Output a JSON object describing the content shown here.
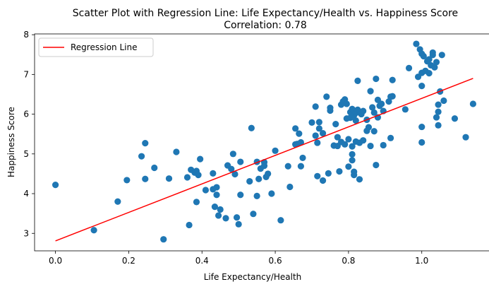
{
  "chart_data": {
    "type": "scatter",
    "title": "Scatter Plot with Regression Line: Life Expectancy/Health vs. Happiness Score",
    "subtitle": "Correlation: 0.78",
    "xlabel": "Life Expectancy/Health",
    "ylabel": "Happiness Score",
    "xlim": [
      -0.057,
      1.197
    ],
    "ylim": [
      2.56,
      8.02
    ],
    "xticks": [
      0.0,
      0.2,
      0.4,
      0.6,
      0.8,
      1.0
    ],
    "xtick_labels": [
      "0.0",
      "0.2",
      "0.4",
      "0.6",
      "0.8",
      "1.0"
    ],
    "yticks": [
      3,
      4,
      5,
      6,
      7,
      8
    ],
    "ytick_labels": [
      "3",
      "4",
      "5",
      "6",
      "7",
      "8"
    ],
    "grid": false,
    "legend": {
      "placement": "top-left",
      "entries": [
        "Regression Line"
      ]
    },
    "colors": {
      "points": "#1f77b4",
      "regression": "#ff0000"
    },
    "regression": {
      "name": "Regression Line",
      "x": [
        0.0,
        1.14
      ],
      "y": [
        2.81,
        6.9
      ]
    },
    "points": [
      [
        0.0,
        4.22
      ],
      [
        0.105,
        3.08
      ],
      [
        0.17,
        3.8
      ],
      [
        0.195,
        4.34
      ],
      [
        0.235,
        4.94
      ],
      [
        0.245,
        5.27
      ],
      [
        0.245,
        4.37
      ],
      [
        0.27,
        4.65
      ],
      [
        0.295,
        2.85
      ],
      [
        0.31,
        4.38
      ],
      [
        0.33,
        5.05
      ],
      [
        0.36,
        4.41
      ],
      [
        0.365,
        3.21
      ],
      [
        0.37,
        4.6
      ],
      [
        0.38,
        4.53
      ],
      [
        0.385,
        3.79
      ],
      [
        0.385,
        4.57
      ],
      [
        0.39,
        4.47
      ],
      [
        0.395,
        4.87
      ],
      [
        0.41,
        4.09
      ],
      [
        0.43,
        4.51
      ],
      [
        0.43,
        4.11
      ],
      [
        0.435,
        3.67
      ],
      [
        0.44,
        4.16
      ],
      [
        0.44,
        3.97
      ],
      [
        0.445,
        3.45
      ],
      [
        0.45,
        3.6
      ],
      [
        0.465,
        3.38
      ],
      [
        0.47,
        4.71
      ],
      [
        0.48,
        4.62
      ],
      [
        0.485,
        5.0
      ],
      [
        0.49,
        4.49
      ],
      [
        0.495,
        3.4
      ],
      [
        0.5,
        3.23
      ],
      [
        0.505,
        3.97
      ],
      [
        0.505,
        4.8
      ],
      [
        0.53,
        4.31
      ],
      [
        0.535,
        5.65
      ],
      [
        0.54,
        3.49
      ],
      [
        0.55,
        4.8
      ],
      [
        0.55,
        3.94
      ],
      [
        0.555,
        4.37
      ],
      [
        0.56,
        4.63
      ],
      [
        0.57,
        4.79
      ],
      [
        0.57,
        4.7
      ],
      [
        0.575,
        4.42
      ],
      [
        0.58,
        4.5
      ],
      [
        0.59,
        4.0
      ],
      [
        0.6,
        5.08
      ],
      [
        0.615,
        3.33
      ],
      [
        0.635,
        4.69
      ],
      [
        0.64,
        4.17
      ],
      [
        0.655,
        5.24
      ],
      [
        0.655,
        5.64
      ],
      [
        0.66,
        5.25
      ],
      [
        0.665,
        5.51
      ],
      [
        0.67,
        4.69
      ],
      [
        0.67,
        5.29
      ],
      [
        0.675,
        4.9
      ],
      [
        0.7,
        5.79
      ],
      [
        0.71,
        5.46
      ],
      [
        0.71,
        6.19
      ],
      [
        0.715,
        4.44
      ],
      [
        0.715,
        5.28
      ],
      [
        0.72,
        5.64
      ],
      [
        0.72,
        5.8
      ],
      [
        0.73,
        4.33
      ],
      [
        0.73,
        5.52
      ],
      [
        0.74,
        6.44
      ],
      [
        0.745,
        4.51
      ],
      [
        0.75,
        6.16
      ],
      [
        0.75,
        6.09
      ],
      [
        0.76,
        5.21
      ],
      [
        0.765,
        5.75
      ],
      [
        0.77,
        5.2
      ],
      [
        0.77,
        5.42
      ],
      [
        0.775,
        4.56
      ],
      [
        0.78,
        5.3
      ],
      [
        0.78,
        6.24
      ],
      [
        0.785,
        6.32
      ],
      [
        0.79,
        6.37
      ],
      [
        0.79,
        5.24
      ],
      [
        0.795,
        5.89
      ],
      [
        0.795,
        6.26
      ],
      [
        0.8,
        4.68
      ],
      [
        0.8,
        5.37
      ],
      [
        0.805,
        5.91
      ],
      [
        0.805,
        6.05
      ],
      [
        0.81,
        5.19
      ],
      [
        0.81,
        6.13
      ],
      [
        0.81,
        4.99
      ],
      [
        0.81,
        4.84
      ],
      [
        0.815,
        4.55
      ],
      [
        0.815,
        4.47
      ],
      [
        0.815,
        5.97
      ],
      [
        0.82,
        6.03
      ],
      [
        0.82,
        5.84
      ],
      [
        0.82,
        5.31
      ],
      [
        0.825,
        6.11
      ],
      [
        0.825,
        6.84
      ],
      [
        0.83,
        4.36
      ],
      [
        0.83,
        5.28
      ],
      [
        0.835,
        6.0
      ],
      [
        0.84,
        6.08
      ],
      [
        0.84,
        5.34
      ],
      [
        0.85,
        5.86
      ],
      [
        0.85,
        5.58
      ],
      [
        0.855,
        5.67
      ],
      [
        0.86,
        5.2
      ],
      [
        0.86,
        6.58
      ],
      [
        0.865,
        6.17
      ],
      [
        0.87,
        6.04
      ],
      [
        0.87,
        5.57
      ],
      [
        0.875,
        6.89
      ],
      [
        0.875,
        4.72
      ],
      [
        0.88,
        5.92
      ],
      [
        0.88,
        6.36
      ],
      [
        0.885,
        6.21
      ],
      [
        0.89,
        6.26
      ],
      [
        0.895,
        6.08
      ],
      [
        0.895,
        5.22
      ],
      [
        0.91,
        6.32
      ],
      [
        0.915,
        5.4
      ],
      [
        0.915,
        6.44
      ],
      [
        0.92,
        6.86
      ],
      [
        0.92,
        6.45
      ],
      [
        0.955,
        6.12
      ],
      [
        0.965,
        7.16
      ],
      [
        0.985,
        7.77
      ],
      [
        0.99,
        6.94
      ],
      [
        0.995,
        7.63
      ],
      [
        1.0,
        7.04
      ],
      [
        1.0,
        7.52
      ],
      [
        1.0,
        6.71
      ],
      [
        1.0,
        5.68
      ],
      [
        1.0,
        5.29
      ],
      [
        1.005,
        7.46
      ],
      [
        1.01,
        7.09
      ],
      [
        1.015,
        7.33
      ],
      [
        1.02,
        7.38
      ],
      [
        1.02,
        7.03
      ],
      [
        1.025,
        7.23
      ],
      [
        1.03,
        7.55
      ],
      [
        1.03,
        7.49
      ],
      [
        1.035,
        7.18
      ],
      [
        1.04,
        5.92
      ],
      [
        1.04,
        7.31
      ],
      [
        1.045,
        6.06
      ],
      [
        1.045,
        5.72
      ],
      [
        1.045,
        6.24
      ],
      [
        1.05,
        6.57
      ],
      [
        1.055,
        7.49
      ],
      [
        1.06,
        6.34
      ],
      [
        1.09,
        5.89
      ],
      [
        1.12,
        5.42
      ],
      [
        1.14,
        6.26
      ]
    ]
  }
}
